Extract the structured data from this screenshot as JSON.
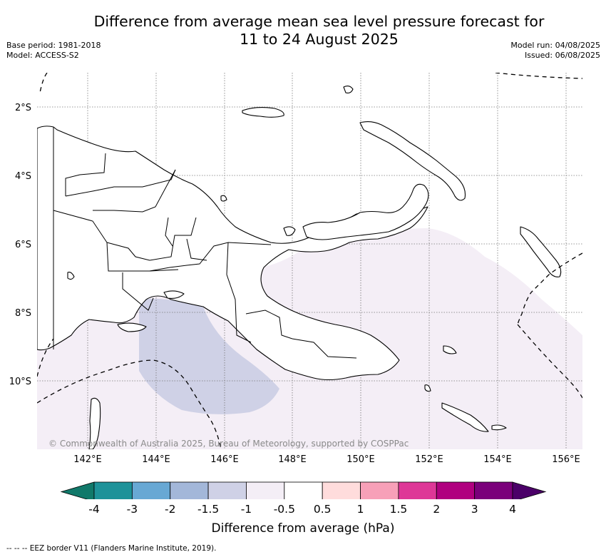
{
  "title": {
    "line1": "Difference from average mean sea level pressure forecast for",
    "line2": "11 to 24 August 2025"
  },
  "meta": {
    "base_period": "Base period: 1981-2018",
    "model": "Model: ACCESS-S2",
    "model_run": "Model run: 04/08/2025",
    "issued": "Issued: 06/08/2025"
  },
  "map": {
    "latitude_labels": [
      "2°S",
      "4°S",
      "6°S",
      "8°S",
      "10°S"
    ],
    "longitude_labels": [
      "142°E",
      "144°E",
      "146°E",
      "148°E",
      "150°E",
      "152°E",
      "154°E",
      "156°E"
    ],
    "copyright": "© Commonwealth of Australia 2025, Bureau of Meteorology, supported by COSPPac",
    "fields": [
      {
        "range": "-0.5 to -1 hPa",
        "color": "#f4eef6"
      },
      {
        "range": "-1 to -1.5 hPa",
        "color": "#cfd1e6"
      }
    ]
  },
  "colorbar": {
    "ticks": [
      "-4",
      "-3",
      "-2",
      "-1.5",
      "-1",
      "-0.5",
      "0.5",
      "1",
      "1.5",
      "2",
      "3",
      "4"
    ],
    "colors": [
      "#11796a",
      "#1e9299",
      "#68a8d4",
      "#a3b7d9",
      "#cfd1e6",
      "#f4eef6",
      "#ffffff",
      "#ffdcdc",
      "#f7a0b8",
      "#de3797",
      "#b0007f",
      "#7a007a",
      "#4b0068"
    ],
    "label": "Difference from average (hPa)"
  },
  "footer": "--  --  -- EEZ border V11 (Flanders Marine Institute, 2019)."
}
